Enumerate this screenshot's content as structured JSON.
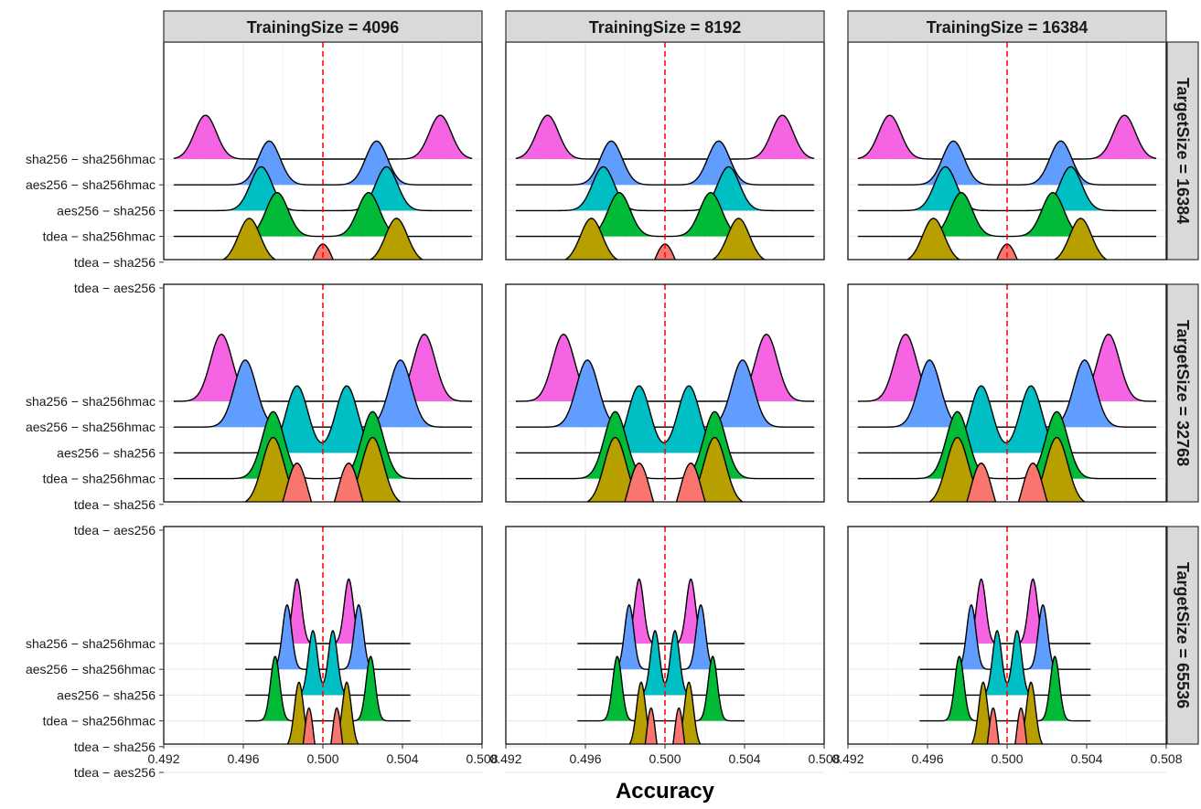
{
  "chart_data": {
    "type": "ridgeline",
    "xlabel": "Accuracy",
    "xlim": [
      0.492,
      0.508
    ],
    "x_ticks": [
      "0.492",
      "0.496",
      "0.500",
      "0.504",
      "0.508"
    ],
    "reference_line": 0.5,
    "reference_color": "#ff0000",
    "rows": [
      "tdea − aes256",
      "tdea − sha256",
      "tdea − sha256hmac",
      "aes256 − sha256",
      "aes256 − sha256hmac",
      "sha256 − sha256hmac"
    ],
    "row_colors": [
      "#f8766d",
      "#b79f00",
      "#00ba38",
      "#00bfc4",
      "#619cff",
      "#f564e3"
    ],
    "columns": [
      "TrainingSize = 4096",
      "TrainingSize = 8192",
      "TrainingSize = 16384"
    ],
    "facet_rows": [
      "TargetSize = 16384",
      "TargetSize = 32768",
      "TargetSize = 65536"
    ],
    "panels": [
      {
        "training": 4096,
        "target": 16384,
        "x_range": [
          0.4925,
          0.5075
        ],
        "sd": 0.00055,
        "height": 1.7,
        "peaks": [
          [
            0.5
          ],
          [
            0.4963,
            0.5037
          ],
          [
            0.4977,
            0.5023
          ],
          [
            0.4969,
            0.5032
          ],
          [
            0.4973,
            0.5027
          ],
          [
            0.4941,
            0.5059
          ]
        ]
      },
      {
        "training": 8192,
        "target": 16384,
        "x_range": [
          0.4925,
          0.5075
        ],
        "sd": 0.00055,
        "height": 1.7,
        "peaks": [
          [
            0.5
          ],
          [
            0.4963,
            0.5037
          ],
          [
            0.4977,
            0.5023
          ],
          [
            0.4969,
            0.5032
          ],
          [
            0.4973,
            0.5027
          ],
          [
            0.4941,
            0.5059
          ]
        ]
      },
      {
        "training": 16384,
        "target": 16384,
        "x_range": [
          0.4925,
          0.5075
        ],
        "sd": 0.00055,
        "height": 1.7,
        "peaks": [
          [
            0.5
          ],
          [
            0.4963,
            0.5037
          ],
          [
            0.4977,
            0.5023
          ],
          [
            0.4969,
            0.5032
          ],
          [
            0.4973,
            0.5027
          ],
          [
            0.4941,
            0.5059
          ]
        ]
      },
      {
        "training": 4096,
        "target": 32768,
        "x_range": [
          0.4925,
          0.5075
        ],
        "sd": 0.00055,
        "height": 2.6,
        "peaks": [
          [
            0.4987,
            0.5013
          ],
          [
            0.4975,
            0.5025
          ],
          [
            0.4975,
            0.5025
          ],
          [
            0.4987,
            0.5012
          ],
          [
            0.4961,
            0.5039
          ],
          [
            0.4949,
            0.5051
          ]
        ]
      },
      {
        "training": 8192,
        "target": 32768,
        "x_range": [
          0.4925,
          0.5075
        ],
        "sd": 0.00055,
        "height": 2.6,
        "peaks": [
          [
            0.4987,
            0.5013
          ],
          [
            0.4975,
            0.5025
          ],
          [
            0.4975,
            0.5025
          ],
          [
            0.4987,
            0.5012
          ],
          [
            0.4961,
            0.5039
          ],
          [
            0.4949,
            0.5051
          ]
        ]
      },
      {
        "training": 16384,
        "target": 32768,
        "x_range": [
          0.4925,
          0.5075
        ],
        "sd": 0.00055,
        "height": 2.6,
        "peaks": [
          [
            0.4987,
            0.5013
          ],
          [
            0.4975,
            0.5025
          ],
          [
            0.4975,
            0.5025
          ],
          [
            0.4987,
            0.5012
          ],
          [
            0.4961,
            0.5039
          ],
          [
            0.4949,
            0.5051
          ]
        ]
      },
      {
        "training": 4096,
        "target": 65536,
        "x_range": [
          0.4961,
          0.5044
        ],
        "sd": 0.00023,
        "height": 2.5,
        "peaks": [
          [
            0.4993,
            0.5007
          ],
          [
            0.4988,
            0.5012
          ],
          [
            0.4976,
            0.5024
          ],
          [
            0.4995,
            0.5005
          ],
          [
            0.4982,
            0.5018
          ],
          [
            0.4987,
            0.5013
          ]
        ]
      },
      {
        "training": 8192,
        "target": 65536,
        "x_range": [
          0.4956,
          0.504
        ],
        "sd": 0.00023,
        "height": 2.5,
        "peaks": [
          [
            0.4993,
            0.5007
          ],
          [
            0.4988,
            0.5012
          ],
          [
            0.4976,
            0.5024
          ],
          [
            0.4995,
            0.5005
          ],
          [
            0.4982,
            0.5018
          ],
          [
            0.4987,
            0.5013
          ]
        ]
      },
      {
        "training": 16384,
        "target": 65536,
        "x_range": [
          0.4956,
          0.5042
        ],
        "sd": 0.00023,
        "height": 2.5,
        "peaks": [
          [
            0.4993,
            0.5007
          ],
          [
            0.4988,
            0.5012
          ],
          [
            0.4976,
            0.5024
          ],
          [
            0.4995,
            0.5005
          ],
          [
            0.4982,
            0.5018
          ],
          [
            0.4987,
            0.5013
          ]
        ]
      }
    ]
  }
}
